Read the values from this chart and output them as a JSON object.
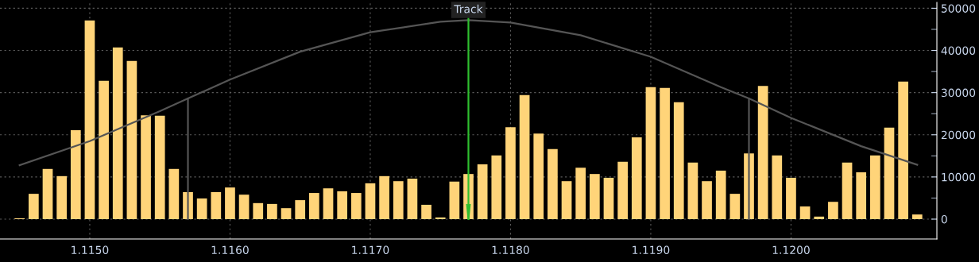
{
  "chart_data": {
    "type": "bar",
    "x": [
      1.1145,
      1.1146,
      1.1147,
      1.1148,
      1.1149,
      1.115,
      1.1151,
      1.1152,
      1.1153,
      1.1154,
      1.1155,
      1.1156,
      1.1157,
      1.1158,
      1.1159,
      1.116,
      1.1161,
      1.1162,
      1.1163,
      1.1164,
      1.1165,
      1.1166,
      1.1167,
      1.1168,
      1.1169,
      1.117,
      1.1171,
      1.1172,
      1.1173,
      1.1174,
      1.1175,
      1.1176,
      1.1177,
      1.1178,
      1.1179,
      1.118,
      1.1181,
      1.1182,
      1.1183,
      1.1184,
      1.1185,
      1.1186,
      1.1187,
      1.1188,
      1.1189,
      1.119,
      1.1191,
      1.1192,
      1.1193,
      1.1194,
      1.1195,
      1.1196,
      1.1197,
      1.1198,
      1.1199,
      1.12,
      1.1201,
      1.1202,
      1.1203,
      1.1204,
      1.1205,
      1.1206,
      1.1207,
      1.1208,
      1.1209
    ],
    "series": [
      {
        "color": "#ffd479",
        "values": [
          200,
          6000,
          11900,
          10200,
          21100,
          47100,
          32800,
          40700,
          37500,
          24600,
          24500,
          11900,
          6400,
          4900,
          6400,
          7500,
          5800,
          3800,
          3600,
          2600,
          4500,
          6200,
          7300,
          6600,
          6200,
          8500,
          10200,
          9000,
          9600,
          3400,
          400,
          8900,
          10700,
          13000,
          15100,
          21800,
          29400,
          20300,
          16600,
          9000,
          12200,
          10700,
          9800,
          13600,
          19400,
          31300,
          31100,
          27700,
          13400,
          9000,
          11500,
          6000,
          15600,
          31600,
          15100,
          9800,
          3000,
          600,
          4100,
          13400,
          11100,
          15100,
          21700,
          32600,
          1100
        ]
      },
      {
        "type": "line",
        "color": "#555555",
        "x": [
          1.1145,
          1.115,
          1.1155,
          1.1157,
          1.116,
          1.1165,
          1.117,
          1.1175,
          1.1177,
          1.118,
          1.1185,
          1.119,
          1.1195,
          1.1197,
          1.12,
          1.1205,
          1.1209
        ],
        "values": [
          12800,
          18500,
          25600,
          28600,
          33100,
          39700,
          44300,
          46800,
          47200,
          46600,
          43600,
          38500,
          31300,
          28600,
          24000,
          17300,
          12900
        ]
      },
      {
        "type": "line",
        "color": "#555555",
        "x": [
          1.1157,
          1.1157
        ],
        "values": [
          0,
          28600
        ]
      },
      {
        "type": "line",
        "color": "#555555",
        "x": [
          1.1197,
          1.1197
        ],
        "values": [
          0,
          28600
        ]
      }
    ],
    "xlim": [
      1.11436,
      1.12104
    ],
    "xticks": [
      {
        "value": 1.115,
        "label": "1.1150"
      },
      {
        "value": 1.116,
        "label": "1.1160"
      },
      {
        "value": 1.117,
        "label": "1.1170"
      },
      {
        "value": 1.118,
        "label": "1.1180"
      },
      {
        "value": 1.119,
        "label": "1.1190"
      },
      {
        "value": 1.12,
        "label": "1.1200"
      }
    ],
    "ylim": [
      -4700,
      51400
    ],
    "yticks": [
      0,
      {
        "value": 5000,
        "label": null
      },
      10000,
      {
        "value": 15000,
        "label": null
      },
      20000,
      {
        "value": 25000,
        "label": null
      },
      30000,
      {
        "value": 35000,
        "label": null
      },
      40000,
      {
        "value": 45000,
        "label": null
      },
      50000
    ],
    "ref_lines": [
      {
        "axis": "x",
        "value": 1.1177,
        "label": "Track",
        "color": "#2fbf2f"
      }
    ],
    "grid": true
  }
}
